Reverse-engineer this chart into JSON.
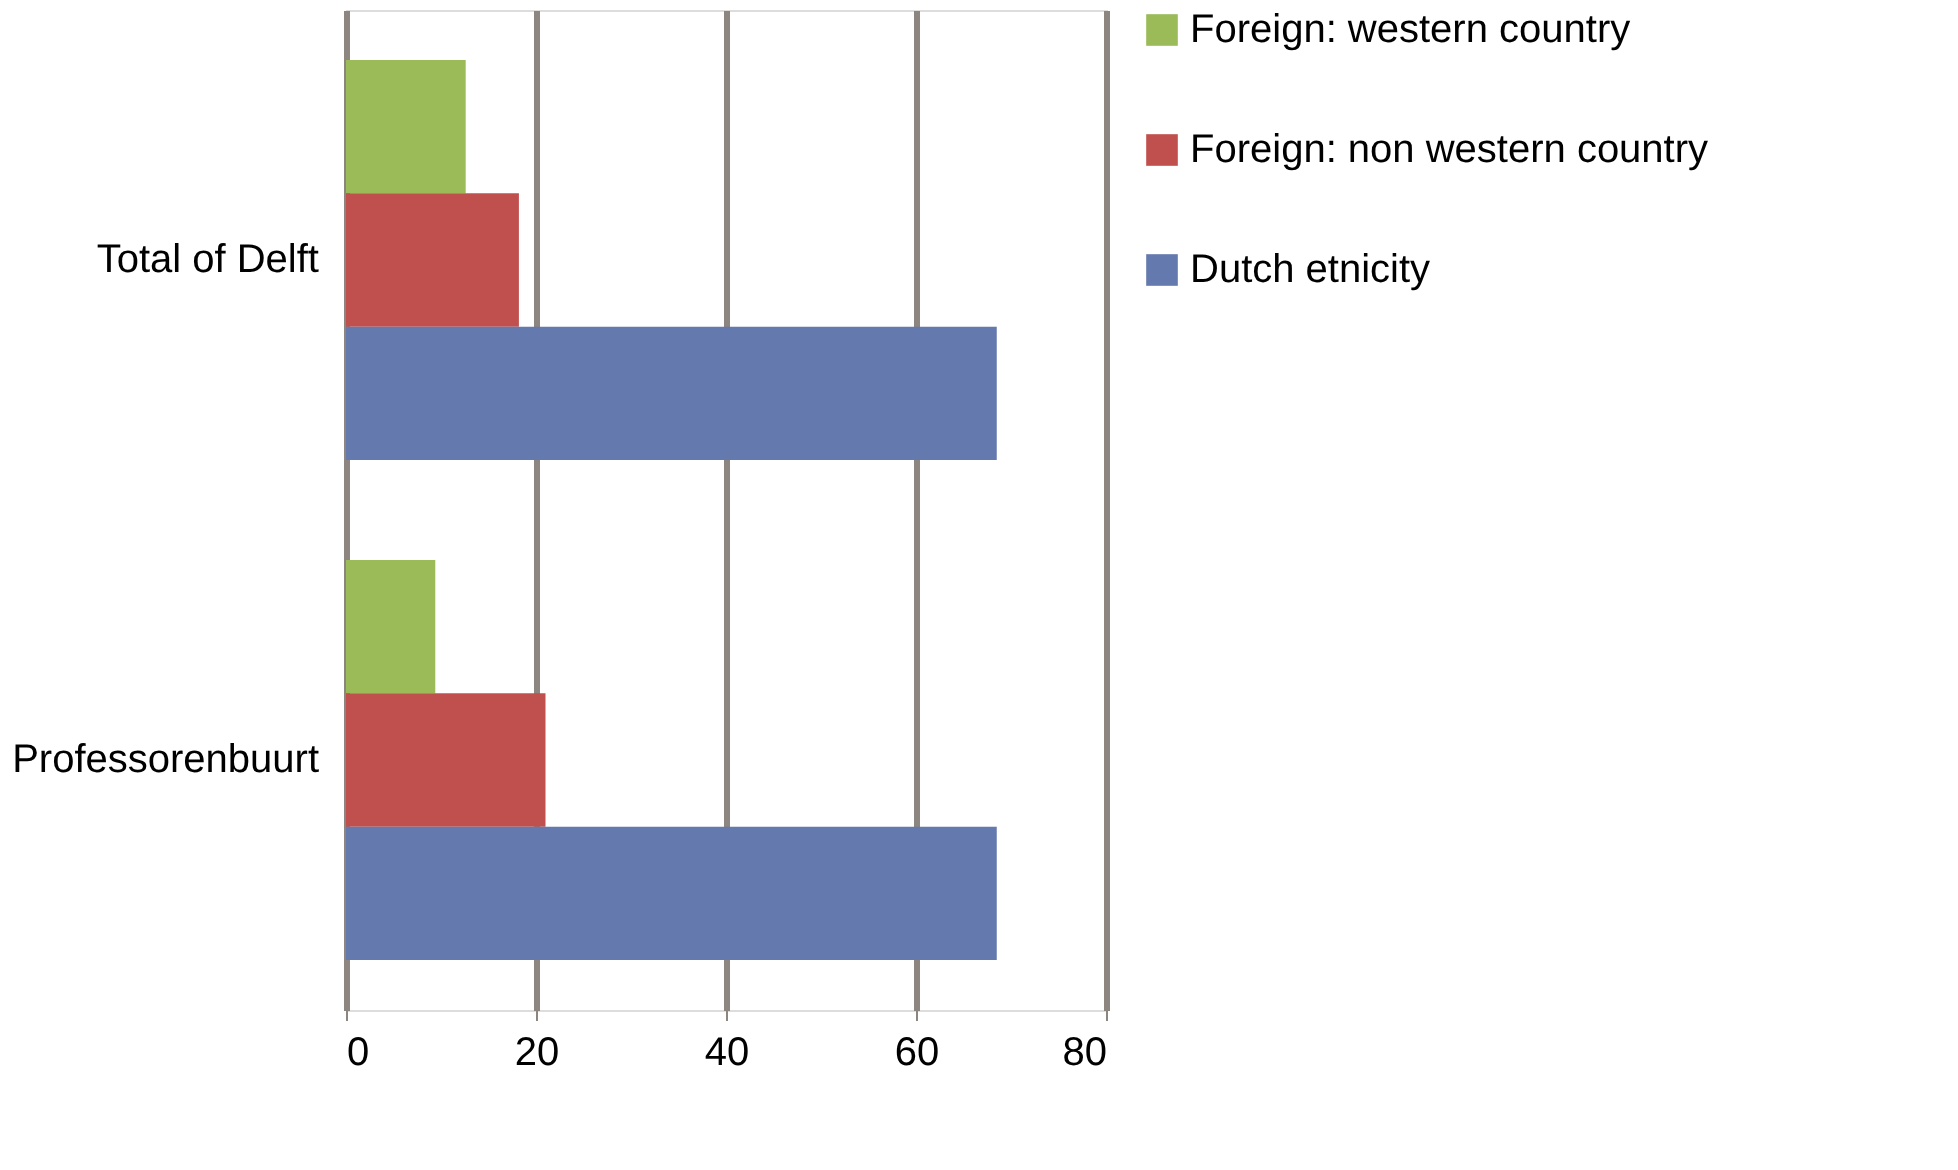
{
  "chart_data": {
    "type": "bar",
    "orientation": "horizontal",
    "categories": [
      "Total of Delft",
      "Professorenbuurt"
    ],
    "series": [
      {
        "name": "Foreign: western country",
        "color": "#9bbb59",
        "values": [
          12.6,
          9.4
        ]
      },
      {
        "name": "Foreign: non western country",
        "color": "#c0504d",
        "values": [
          18.2,
          21
        ]
      },
      {
        "name": "Dutch etnicity",
        "color": "#6479ad",
        "values": [
          68.5,
          68.5
        ]
      }
    ],
    "xlim": [
      0,
      80
    ],
    "xticks": [
      0,
      20,
      40,
      60,
      80
    ],
    "grid": "x",
    "legend": "right"
  }
}
